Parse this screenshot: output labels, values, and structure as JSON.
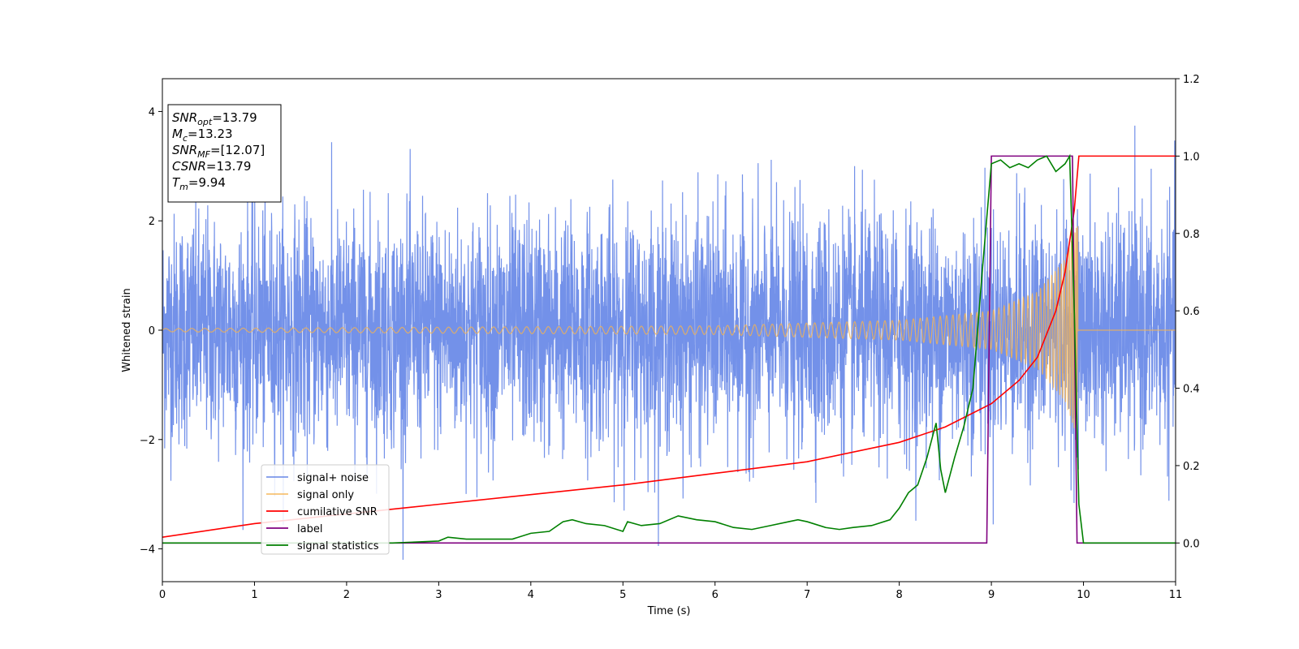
{
  "chart_data": {
    "type": "line",
    "xlabel": "Time (s)",
    "ylabel": "Whitened strain",
    "xlim": [
      0,
      11
    ],
    "ylim_left": [
      -4.6,
      4.6
    ],
    "ylim_right": [
      -0.1,
      1.2
    ],
    "x_ticks": [
      "0",
      "1",
      "2",
      "3",
      "4",
      "5",
      "6",
      "7",
      "8",
      "9",
      "10",
      "11"
    ],
    "y_ticks_left": [
      "−4",
      "−2",
      "0",
      "2",
      "4"
    ],
    "y_ticks_right": [
      "0.0",
      "0.2",
      "0.4",
      "0.6",
      "0.8",
      "1.0",
      "1.2"
    ],
    "grid": false,
    "legend_position": "lower-left",
    "colors": {
      "signal_noise": "#5b7ee5",
      "signal_only": "#f5b350",
      "cumulative_snr": "#ff0000",
      "label": "#800080",
      "signal_statistics": "#008000"
    },
    "series": [
      {
        "name": "signal+ noise",
        "axis": "left",
        "description_range": [
          -4.2,
          4.2
        ],
        "approx_std": 1.0
      },
      {
        "name": "signal only",
        "axis": "left",
        "chirp_end": 9.94,
        "approx_amplitude_envelope": [
          [
            0,
            0.03
          ],
          [
            6,
            0.08
          ],
          [
            8,
            0.18
          ],
          [
            9,
            0.35
          ],
          [
            9.5,
            0.7
          ],
          [
            9.8,
            1.3
          ],
          [
            9.94,
            2.0
          ]
        ]
      },
      {
        "name": "cumilative SNR",
        "axis": "right",
        "x": [
          0,
          1,
          2,
          3,
          4,
          5,
          6,
          7,
          8,
          8.5,
          9,
          9.3,
          9.5,
          9.7,
          9.8,
          9.9,
          9.95,
          10,
          11
        ],
        "values": [
          0.015,
          0.05,
          0.075,
          0.1,
          0.125,
          0.15,
          0.18,
          0.21,
          0.26,
          0.3,
          0.36,
          0.42,
          0.48,
          0.6,
          0.7,
          0.86,
          1.0,
          1.0,
          1.0
        ]
      },
      {
        "name": "label",
        "axis": "right",
        "x": [
          0,
          8.95,
          9.0,
          9.88,
          9.93,
          11
        ],
        "values": [
          0.0,
          0.0,
          1.0,
          1.0,
          0.0,
          0.0
        ]
      },
      {
        "name": "signal statistics",
        "axis": "right",
        "x": [
          0,
          0.5,
          1,
          1.5,
          2,
          2.5,
          3,
          3.1,
          3.3,
          3.5,
          3.8,
          4.0,
          4.2,
          4.35,
          4.45,
          4.6,
          4.8,
          5.0,
          5.05,
          5.2,
          5.4,
          5.6,
          5.8,
          6.0,
          6.2,
          6.4,
          6.6,
          6.8,
          6.9,
          7.0,
          7.2,
          7.35,
          7.5,
          7.7,
          7.9,
          8.0,
          8.1,
          8.2,
          8.3,
          8.4,
          8.45,
          8.5,
          8.6,
          8.7,
          8.8,
          8.9,
          9.0,
          9.1,
          9.2,
          9.3,
          9.4,
          9.5,
          9.6,
          9.7,
          9.8,
          9.85,
          9.9,
          9.95,
          10.0,
          11.0
        ],
        "values": [
          0.0,
          0.0,
          0.0,
          0.0,
          0.0,
          0.0,
          0.005,
          0.015,
          0.01,
          0.01,
          0.01,
          0.025,
          0.03,
          0.055,
          0.06,
          0.05,
          0.045,
          0.03,
          0.055,
          0.045,
          0.05,
          0.07,
          0.06,
          0.055,
          0.04,
          0.035,
          0.045,
          0.055,
          0.06,
          0.055,
          0.04,
          0.035,
          0.04,
          0.045,
          0.06,
          0.09,
          0.13,
          0.15,
          0.22,
          0.31,
          0.19,
          0.13,
          0.22,
          0.3,
          0.4,
          0.7,
          0.98,
          0.99,
          0.97,
          0.98,
          0.97,
          0.99,
          1.0,
          0.96,
          0.98,
          1.0,
          0.6,
          0.1,
          0.0,
          0.0
        ]
      }
    ],
    "annotation": {
      "lines": [
        {
          "main": "SNR",
          "sub": "opt",
          "value": "=13.79"
        },
        {
          "main": "M",
          "sub": "c",
          "value": "=13.23"
        },
        {
          "main": "SNR",
          "sub": "MF",
          "value": "=[12.07]"
        },
        {
          "main": "CSNR",
          "sub": "",
          "value": "=13.79"
        },
        {
          "main": "T",
          "sub": "m",
          "value": "=9.94"
        }
      ]
    }
  }
}
